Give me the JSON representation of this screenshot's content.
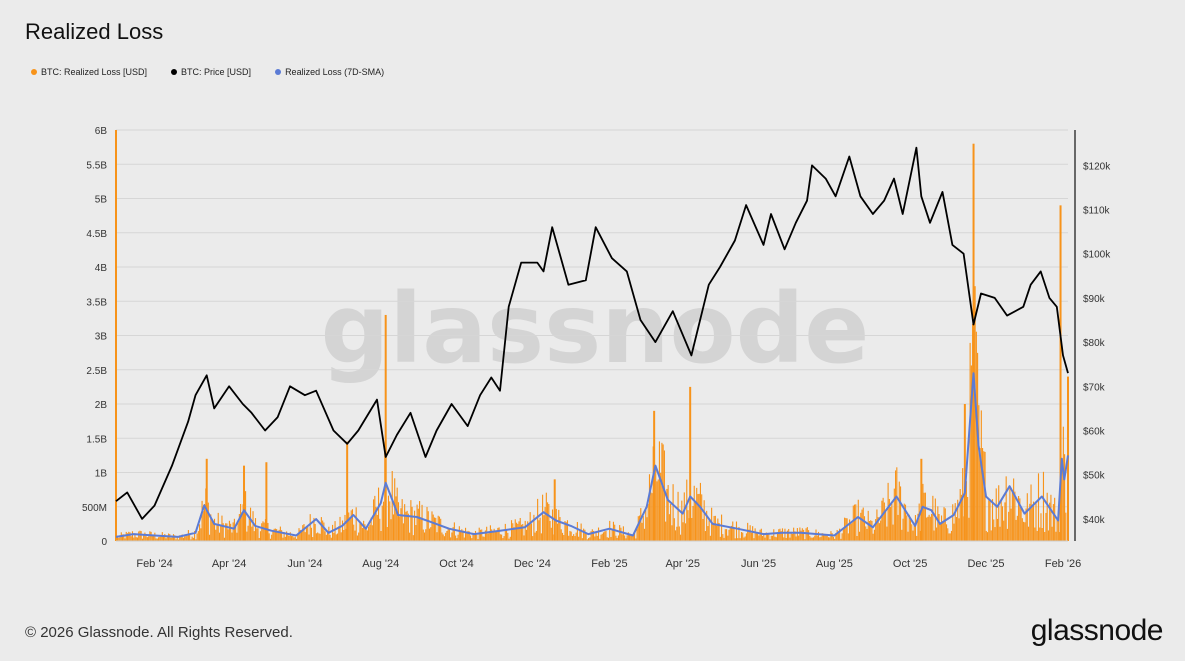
{
  "title": "Realized Loss",
  "legend": [
    {
      "label": "BTC: Realized Loss [USD]",
      "color": "#f7931a"
    },
    {
      "label": "BTC: Price [USD]",
      "color": "#000000"
    },
    {
      "label": "Realized Loss (7D-SMA)",
      "color": "#5b7bd5"
    }
  ],
  "watermark": "glassnode",
  "footer": "© 2026 Glassnode. All Rights Reserved.",
  "brand": "glassnode",
  "chart_data": {
    "type": "bar",
    "title": "Realized Loss",
    "x_ticks": [
      "Feb '24",
      "Apr '24",
      "Jun '24",
      "Aug '24",
      "Oct '24",
      "Dec '24",
      "Feb '25",
      "Apr '25",
      "Jun '25",
      "Aug '25",
      "Oct '25",
      "Dec '25",
      "Feb '26"
    ],
    "y_left": {
      "ticks": [
        "0",
        "500M",
        "1B",
        "1.5B",
        "2B",
        "2.5B",
        "3B",
        "3.5B",
        "4B",
        "4.5B",
        "5B",
        "5.5B",
        "6B"
      ],
      "range": [
        0,
        6000000000
      ]
    },
    "y_right": {
      "ticks": [
        "$40k",
        "$50k",
        "$60k",
        "$70k",
        "$80k",
        "$90k",
        "$100k",
        "$110k",
        "$120k"
      ],
      "range": [
        35000,
        128000
      ]
    },
    "grid": true,
    "legend_position": "top-left",
    "series": [
      {
        "name": "BTC: Price [USD]",
        "axis": "right",
        "color": "#000000",
        "x": [
          "2024-01-01",
          "2024-01-10",
          "2024-01-22",
          "2024-02-01",
          "2024-02-15",
          "2024-02-28",
          "2024-03-05",
          "2024-03-14",
          "2024-03-20",
          "2024-04-01",
          "2024-04-12",
          "2024-04-19",
          "2024-04-30",
          "2024-05-10",
          "2024-05-20",
          "2024-06-01",
          "2024-06-10",
          "2024-06-24",
          "2024-07-05",
          "2024-07-14",
          "2024-07-29",
          "2024-08-05",
          "2024-08-14",
          "2024-08-25",
          "2024-09-06",
          "2024-09-15",
          "2024-09-27",
          "2024-10-10",
          "2024-10-20",
          "2024-10-29",
          "2024-11-05",
          "2024-11-12",
          "2024-11-22",
          "2024-12-05",
          "2024-12-10",
          "2024-12-17",
          "2024-12-30",
          "2025-01-13",
          "2025-01-21",
          "2025-02-03",
          "2025-02-15",
          "2025-02-26",
          "2025-03-10",
          "2025-03-24",
          "2025-04-08",
          "2025-04-22",
          "2025-05-01",
          "2025-05-13",
          "2025-05-22",
          "2025-06-05",
          "2025-06-11",
          "2025-06-22",
          "2025-07-01",
          "2025-07-10",
          "2025-07-14",
          "2025-07-25",
          "2025-08-02",
          "2025-08-13",
          "2025-08-22",
          "2025-09-01",
          "2025-09-10",
          "2025-09-18",
          "2025-09-25",
          "2025-10-06",
          "2025-10-10",
          "2025-10-17",
          "2025-10-27",
          "2025-11-04",
          "2025-11-13",
          "2025-11-21",
          "2025-11-27",
          "2025-12-08",
          "2025-12-18",
          "2025-12-31",
          "2026-01-06",
          "2026-01-14",
          "2026-01-21",
          "2026-01-27",
          "2026-02-01",
          "2026-02-05"
        ],
        "values": [
          44000,
          46000,
          40000,
          43000,
          52000,
          62000,
          68000,
          72500,
          65000,
          70000,
          66000,
          64000,
          60000,
          63000,
          70000,
          68000,
          69000,
          60000,
          57000,
          60000,
          67000,
          54000,
          59000,
          64000,
          54000,
          60000,
          66000,
          61000,
          68000,
          72000,
          69000,
          88000,
          98000,
          98000,
          96000,
          106000,
          93000,
          94000,
          106000,
          99000,
          96000,
          85000,
          80000,
          87000,
          77000,
          93000,
          97000,
          103000,
          111000,
          102000,
          109000,
          101000,
          107000,
          112000,
          120000,
          117000,
          113000,
          122000,
          113000,
          109000,
          112000,
          117000,
          109000,
          124000,
          113000,
          107000,
          114000,
          102000,
          100000,
          84000,
          91000,
          90000,
          86000,
          88000,
          93000,
          96000,
          90000,
          88000,
          77000,
          73000
        ]
      },
      {
        "name": "Realized Loss (7D-SMA)",
        "axis": "left",
        "color": "#5b7bd5",
        "x": [
          "2024-01-01",
          "2024-01-15",
          "2024-02-01",
          "2024-02-20",
          "2024-03-05",
          "2024-03-12",
          "2024-03-20",
          "2024-04-05",
          "2024-04-13",
          "2024-04-22",
          "2024-05-05",
          "2024-05-25",
          "2024-06-10",
          "2024-06-20",
          "2024-07-01",
          "2024-07-10",
          "2024-07-20",
          "2024-08-01",
          "2024-08-05",
          "2024-08-15",
          "2024-08-30",
          "2024-09-10",
          "2024-09-25",
          "2024-10-15",
          "2024-11-05",
          "2024-11-25",
          "2024-12-10",
          "2024-12-20",
          "2025-01-01",
          "2025-01-15",
          "2025-02-01",
          "2025-02-20",
          "2025-03-03",
          "2025-03-10",
          "2025-03-20",
          "2025-04-01",
          "2025-04-07",
          "2025-04-15",
          "2025-04-25",
          "2025-05-15",
          "2025-06-05",
          "2025-06-20",
          "2025-07-05",
          "2025-08-01",
          "2025-08-20",
          "2025-09-01",
          "2025-09-20",
          "2025-10-05",
          "2025-10-11",
          "2025-10-18",
          "2025-10-25",
          "2025-11-05",
          "2025-11-14",
          "2025-11-21",
          "2025-11-25",
          "2025-12-01",
          "2025-12-10",
          "2025-12-20",
          "2026-01-01",
          "2026-01-15",
          "2026-01-28",
          "2026-01-31",
          "2026-02-02",
          "2026-02-05"
        ],
        "values": [
          60000000,
          100000000,
          80000000,
          60000000,
          120000000,
          520000000,
          250000000,
          180000000,
          450000000,
          220000000,
          150000000,
          80000000,
          320000000,
          120000000,
          220000000,
          380000000,
          180000000,
          550000000,
          850000000,
          380000000,
          350000000,
          280000000,
          180000000,
          100000000,
          150000000,
          200000000,
          420000000,
          300000000,
          220000000,
          100000000,
          180000000,
          80000000,
          500000000,
          1100000000,
          600000000,
          400000000,
          650000000,
          500000000,
          250000000,
          180000000,
          100000000,
          120000000,
          120000000,
          80000000,
          350000000,
          200000000,
          650000000,
          220000000,
          500000000,
          450000000,
          250000000,
          380000000,
          700000000,
          2450000000,
          1400000000,
          650000000,
          500000000,
          800000000,
          400000000,
          650000000,
          300000000,
          1200000000,
          900000000,
          1250000000
        ]
      },
      {
        "name": "BTC: Realized Loss [USD]",
        "axis": "left",
        "color": "#f7931a",
        "note_spikes": [
          {
            "x": "2024-01-01",
            "value": 6000000000
          },
          {
            "x": "2024-03-14",
            "value": 1200000000
          },
          {
            "x": "2024-04-13",
            "value": 1100000000
          },
          {
            "x": "2024-05-01",
            "value": 1150000000
          },
          {
            "x": "2024-07-05",
            "value": 1450000000
          },
          {
            "x": "2024-08-05",
            "value": 3300000000
          },
          {
            "x": "2024-12-19",
            "value": 900000000
          },
          {
            "x": "2025-03-09",
            "value": 1900000000
          },
          {
            "x": "2025-04-07",
            "value": 2250000000
          },
          {
            "x": "2025-10-10",
            "value": 1200000000
          },
          {
            "x": "2025-11-14",
            "value": 2000000000
          },
          {
            "x": "2025-11-21",
            "value": 5800000000
          },
          {
            "x": "2026-01-30",
            "value": 4900000000
          },
          {
            "x": "2026-02-05",
            "value": 2400000000
          }
        ]
      }
    ]
  }
}
